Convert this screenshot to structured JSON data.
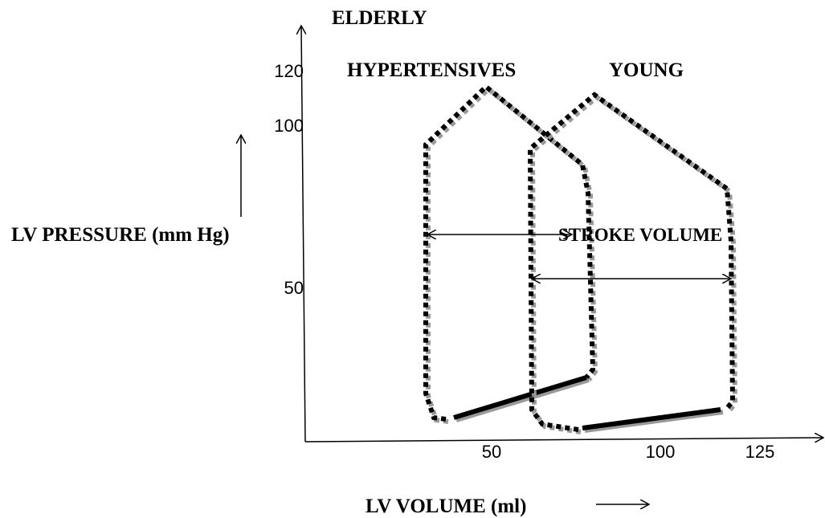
{
  "header": {
    "title": "ELDERLY"
  },
  "loops": {
    "hypertensives": "HYPERTENSIVES",
    "young": "YOUNG"
  },
  "y_axis": {
    "label": "LV PRESSURE (mm Hg)",
    "ticks": [
      120,
      100,
      50
    ]
  },
  "x_axis": {
    "label": "LV VOLUME (ml)",
    "ticks": [
      50,
      100,
      125
    ]
  },
  "annotation": "STROKE VOLUME"
}
